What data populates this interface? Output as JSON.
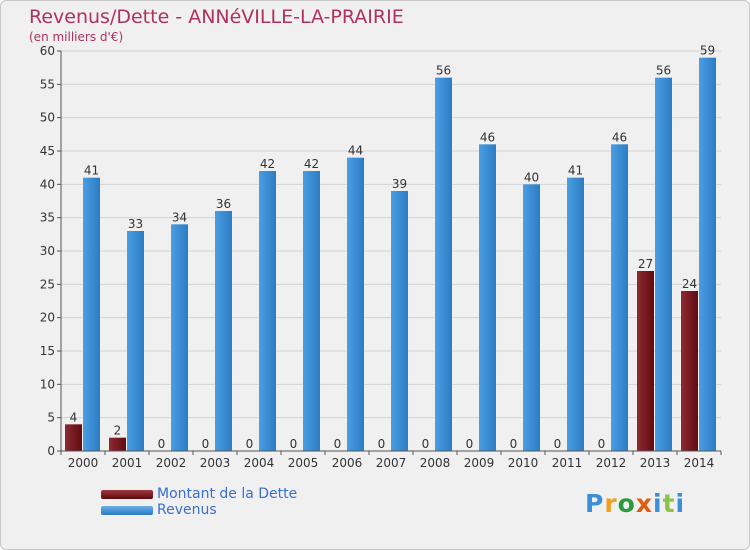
{
  "chart_data": {
    "type": "bar",
    "title": "Revenus/Dette - ANNéVILLE-LA-PRAIRIE",
    "subtitle": "(en milliers d'€)",
    "categories": [
      "2000",
      "2001",
      "2002",
      "2003",
      "2004",
      "2005",
      "2006",
      "2007",
      "2008",
      "2009",
      "2010",
      "2011",
      "2012",
      "2013",
      "2014"
    ],
    "series": [
      {
        "name": "Montant de la Dette",
        "color": "#7a1c20",
        "values": [
          4,
          2,
          0,
          0,
          0,
          0,
          0,
          0,
          0,
          0,
          0,
          0,
          0,
          27,
          24
        ]
      },
      {
        "name": "Revenus",
        "color": "#3a8fd6",
        "values": [
          41,
          33,
          34,
          36,
          42,
          42,
          44,
          39,
          56,
          46,
          40,
          41,
          46,
          56,
          59
        ]
      }
    ],
    "yticks": [
      0,
      5,
      10,
      15,
      20,
      25,
      30,
      35,
      40,
      45,
      50,
      55,
      60
    ],
    "ylim": [
      0,
      60
    ],
    "grid": true,
    "legend": "bottom-left",
    "background": "#f0f0f0",
    "title_color": "#b03060"
  },
  "logo": {
    "text": "Proxiti",
    "letter_colors": [
      "#3a8fd6",
      "#f0a020",
      "#2a9a3a",
      "#e05a10",
      "#3a8fd6",
      "#8bc34a",
      "#3a8fd6"
    ]
  }
}
